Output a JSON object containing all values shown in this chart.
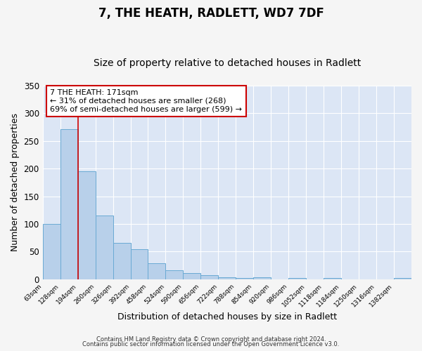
{
  "title": "7, THE HEATH, RADLETT, WD7 7DF",
  "subtitle": "Size of property relative to detached houses in Radlett",
  "xlabel": "Distribution of detached houses by size in Radlett",
  "ylabel": "Number of detached properties",
  "x_labels": [
    "63sqm",
    "128sqm",
    "194sqm",
    "260sqm",
    "326sqm",
    "392sqm",
    "458sqm",
    "524sqm",
    "590sqm",
    "656sqm",
    "722sqm",
    "788sqm",
    "854sqm",
    "920sqm",
    "986sqm",
    "1052sqm",
    "1118sqm",
    "1184sqm",
    "1250sqm",
    "1316sqm",
    "1382sqm"
  ],
  "bar_color": "#b8d0ea",
  "bar_edge_color": "#6aaad4",
  "vline_color": "#cc0000",
  "annotation_text": "7 THE HEATH: 171sqm\n← 31% of detached houses are smaller (268)\n69% of semi-detached houses are larger (599) →",
  "annotation_box_color": "#ffffff",
  "annotation_box_edge": "#cc0000",
  "ylim": [
    0,
    350
  ],
  "yticks": [
    0,
    50,
    100,
    150,
    200,
    250,
    300,
    350
  ],
  "plot_bg_color": "#dce6f5",
  "fig_bg_color": "#f5f5f5",
  "footer_line1": "Contains HM Land Registry data © Crown copyright and database right 2024.",
  "footer_line2": "Contains public sector information licensed under the Open Government Licence v3.0.",
  "title_fontsize": 12,
  "subtitle_fontsize": 10,
  "all_bar_values": [
    100,
    271,
    195,
    115,
    66,
    54,
    29,
    17,
    11,
    8,
    4,
    2,
    4,
    0,
    2,
    0,
    3,
    0,
    0,
    0,
    3
  ]
}
